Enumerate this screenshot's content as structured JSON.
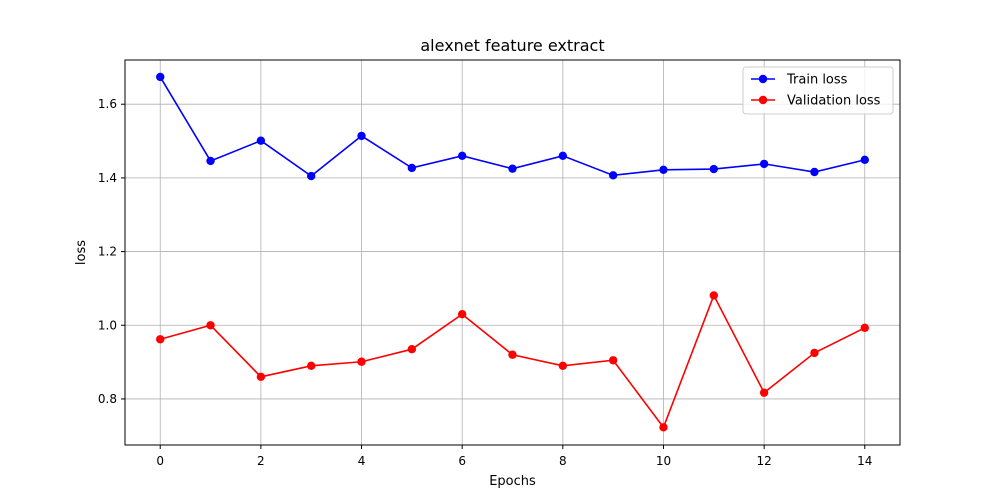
{
  "chart_data": {
    "type": "line",
    "title": "alexnet feature extract",
    "xlabel": "Epochs",
    "ylabel": "loss",
    "xlim": [
      -0.7,
      14.7
    ],
    "ylim": [
      0.675,
      1.72
    ],
    "xticks": [
      0,
      2,
      4,
      6,
      8,
      10,
      12,
      14
    ],
    "yticks": [
      0.8,
      1.0,
      1.2,
      1.4,
      1.6
    ],
    "ytick_labels": [
      "0.8",
      "1.0",
      "1.2",
      "1.4",
      "1.6"
    ],
    "grid": true,
    "legend_position": "top-right",
    "x": [
      0,
      1,
      2,
      3,
      4,
      5,
      6,
      7,
      8,
      9,
      10,
      11,
      12,
      13,
      14
    ],
    "series": [
      {
        "name": "Train loss",
        "color": "#0000ff",
        "values": [
          1.674,
          1.446,
          1.501,
          1.405,
          1.514,
          1.427,
          1.46,
          1.425,
          1.46,
          1.407,
          1.422,
          1.424,
          1.438,
          1.416,
          1.449
        ]
      },
      {
        "name": "Validation loss",
        "color": "#ff0000",
        "values": [
          0.962,
          1.0,
          0.86,
          0.89,
          0.901,
          0.935,
          1.03,
          0.92,
          0.89,
          0.905,
          0.723,
          1.081,
          0.817,
          0.925,
          0.993
        ]
      }
    ]
  }
}
